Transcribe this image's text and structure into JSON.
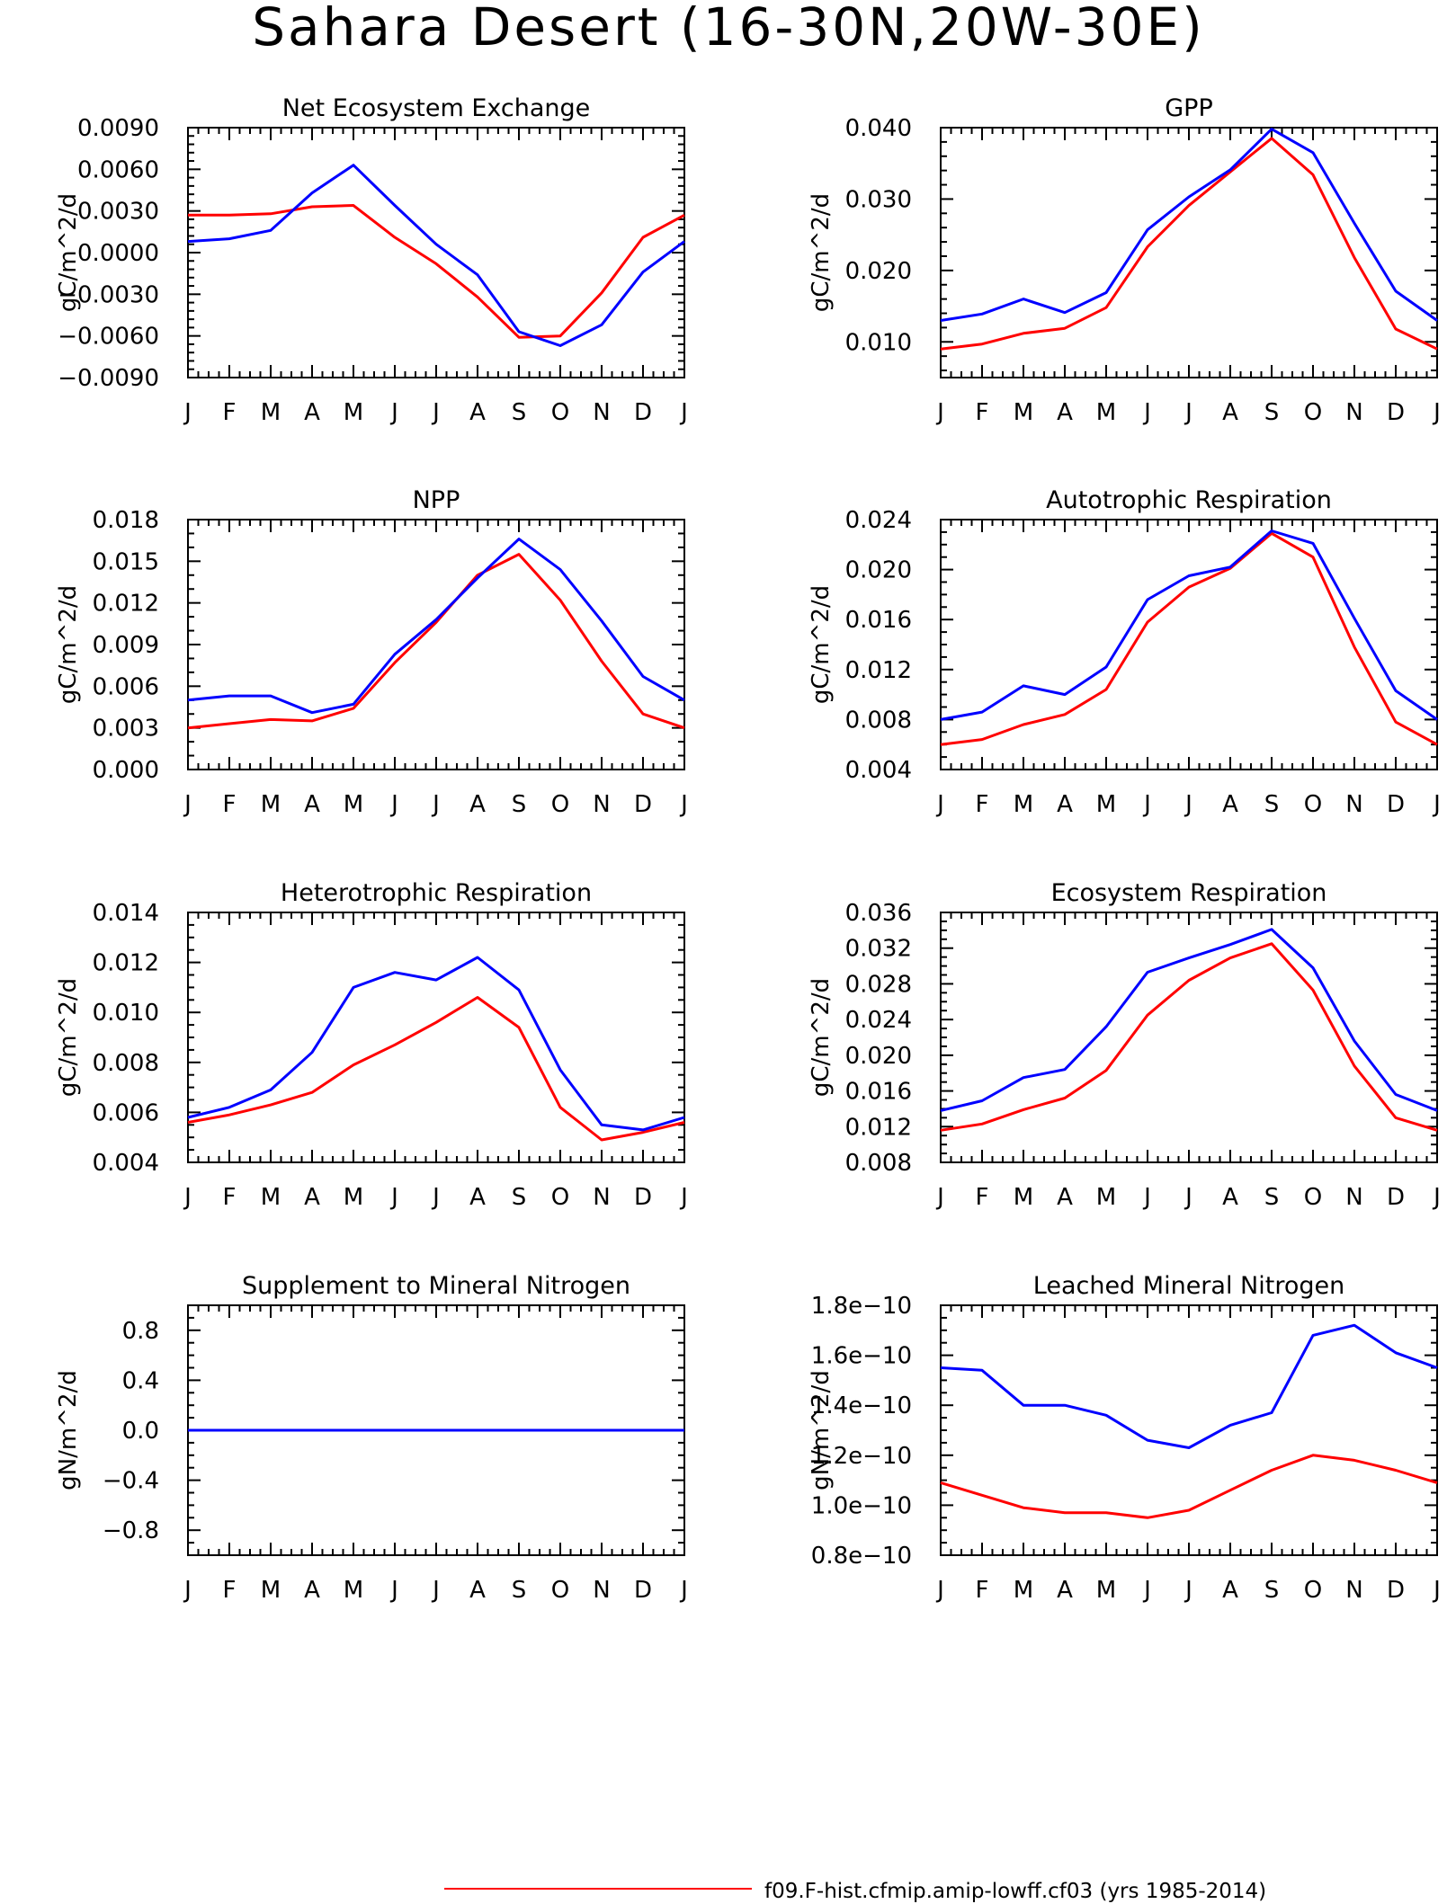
{
  "title": "Sahara Desert (16-30N,20W-30E)",
  "months": [
    "J",
    "F",
    "M",
    "A",
    "M",
    "J",
    "J",
    "A",
    "S",
    "O",
    "N",
    "D",
    "J"
  ],
  "series_colors": {
    "red": "#ff0000",
    "blue": "#0000ff"
  },
  "legend": {
    "red_label": "f09.F-hist.cfmip.amip-lowff.cf03 (yrs 1985-2014)"
  },
  "chart_data": [
    {
      "type": "line",
      "title": "Net Ecosystem Exchange",
      "ylabel": "gC/m^2/d",
      "ylim": [
        -0.009,
        0.009
      ],
      "yticks": [
        -0.009,
        -0.006,
        -0.003,
        0.0,
        0.003,
        0.006,
        0.009
      ],
      "ytick_labels": [
        "-0.0090",
        "-0.0060",
        "-0.0030",
        "0.0000",
        "0.0030",
        "0.0060",
        "0.0090"
      ],
      "yminor": 5,
      "categories": [
        "J",
        "F",
        "M",
        "A",
        "M",
        "J",
        "J",
        "A",
        "S",
        "O",
        "N",
        "D",
        "J"
      ],
      "series": [
        {
          "color": "red",
          "values": [
            0.0027,
            0.0027,
            0.0028,
            0.0033,
            0.0034,
            0.0011,
            -0.0008,
            -0.0032,
            -0.0061,
            -0.006,
            -0.0029,
            0.0011,
            0.0027
          ]
        },
        {
          "color": "blue",
          "values": [
            0.0008,
            0.001,
            0.0016,
            0.0043,
            0.0063,
            0.0034,
            0.0006,
            -0.0016,
            -0.0057,
            -0.0067,
            -0.0052,
            -0.0014,
            0.0008
          ]
        }
      ]
    },
    {
      "type": "line",
      "title": "GPP",
      "ylabel": "gC/m^2/d",
      "ylim": [
        0.005,
        0.04
      ],
      "yticks": [
        0.01,
        0.02,
        0.03,
        0.04
      ],
      "ytick_labels": [
        "0.010",
        "0.020",
        "0.030",
        "0.040"
      ],
      "yminor": 5,
      "categories": [
        "J",
        "F",
        "M",
        "A",
        "M",
        "J",
        "J",
        "A",
        "S",
        "O",
        "N",
        "D",
        "J"
      ],
      "series": [
        {
          "color": "red",
          "values": [
            0.009,
            0.0097,
            0.0112,
            0.0119,
            0.0148,
            0.0233,
            0.0291,
            0.0338,
            0.0385,
            0.0334,
            0.0218,
            0.0118,
            0.009
          ]
        },
        {
          "color": "blue",
          "values": [
            0.013,
            0.0139,
            0.016,
            0.0141,
            0.0169,
            0.0257,
            0.0303,
            0.0341,
            0.0398,
            0.0365,
            0.0266,
            0.0171,
            0.013
          ]
        }
      ]
    },
    {
      "type": "line",
      "title": "NPP",
      "ylabel": "gC/m^2/d",
      "ylim": [
        0.0,
        0.018
      ],
      "yticks": [
        0.0,
        0.003,
        0.006,
        0.009,
        0.012,
        0.015,
        0.018
      ],
      "ytick_labels": [
        "0.000",
        "0.003",
        "0.006",
        "0.009",
        "0.012",
        "0.015",
        "0.018"
      ],
      "yminor": 3,
      "categories": [
        "J",
        "F",
        "M",
        "A",
        "M",
        "J",
        "J",
        "A",
        "S",
        "O",
        "N",
        "D",
        "J"
      ],
      "series": [
        {
          "color": "red",
          "values": [
            0.003,
            0.0033,
            0.0036,
            0.0035,
            0.0044,
            0.0077,
            0.0106,
            0.014,
            0.0155,
            0.0122,
            0.0078,
            0.004,
            0.003
          ]
        },
        {
          "color": "blue",
          "values": [
            0.005,
            0.0053,
            0.0053,
            0.0041,
            0.0047,
            0.0083,
            0.0108,
            0.0138,
            0.0166,
            0.0144,
            0.0107,
            0.0067,
            0.005
          ]
        }
      ]
    },
    {
      "type": "line",
      "title": "Autotrophic Respiration",
      "ylabel": "gC/m^2/d",
      "ylim": [
        0.004,
        0.024
      ],
      "yticks": [
        0.004,
        0.008,
        0.012,
        0.016,
        0.02,
        0.024
      ],
      "ytick_labels": [
        "0.004",
        "0.008",
        "0.012",
        "0.016",
        "0.020",
        "0.024"
      ],
      "yminor": 4,
      "categories": [
        "J",
        "F",
        "M",
        "A",
        "M",
        "J",
        "J",
        "A",
        "S",
        "O",
        "N",
        "D",
        "J"
      ],
      "series": [
        {
          "color": "red",
          "values": [
            0.006,
            0.0064,
            0.0076,
            0.0084,
            0.0104,
            0.0158,
            0.0186,
            0.0201,
            0.0229,
            0.021,
            0.0138,
            0.0078,
            0.006
          ]
        },
        {
          "color": "blue",
          "values": [
            0.008,
            0.0086,
            0.0107,
            0.01,
            0.0122,
            0.0176,
            0.0195,
            0.0202,
            0.0231,
            0.0221,
            0.0161,
            0.0103,
            0.008
          ]
        }
      ]
    },
    {
      "type": "line",
      "title": "Heterotrophic Respiration",
      "ylabel": "gC/m^2/d",
      "ylim": [
        0.004,
        0.014
      ],
      "yticks": [
        0.004,
        0.006,
        0.008,
        0.01,
        0.012,
        0.014
      ],
      "ytick_labels": [
        "0.004",
        "0.006",
        "0.008",
        "0.010",
        "0.012",
        "0.014"
      ],
      "yminor": 4,
      "categories": [
        "J",
        "F",
        "M",
        "A",
        "M",
        "J",
        "J",
        "A",
        "S",
        "O",
        "N",
        "D",
        "J"
      ],
      "series": [
        {
          "color": "red",
          "values": [
            0.0056,
            0.0059,
            0.0063,
            0.0068,
            0.0079,
            0.0087,
            0.0096,
            0.0106,
            0.0094,
            0.0062,
            0.0049,
            0.0052,
            0.0056
          ]
        },
        {
          "color": "blue",
          "values": [
            0.0058,
            0.0062,
            0.0069,
            0.0084,
            0.011,
            0.0116,
            0.0113,
            0.0122,
            0.0109,
            0.0077,
            0.0055,
            0.0053,
            0.0058
          ]
        }
      ]
    },
    {
      "type": "line",
      "title": "Ecosystem Respiration",
      "ylabel": "gC/m^2/d",
      "ylim": [
        0.008,
        0.036
      ],
      "yticks": [
        0.008,
        0.012,
        0.016,
        0.02,
        0.024,
        0.028,
        0.032,
        0.036
      ],
      "ytick_labels": [
        "0.008",
        "0.012",
        "0.016",
        "0.020",
        "0.024",
        "0.028",
        "0.032",
        "0.036"
      ],
      "yminor": 4,
      "categories": [
        "J",
        "F",
        "M",
        "A",
        "M",
        "J",
        "J",
        "A",
        "S",
        "O",
        "N",
        "D",
        "J"
      ],
      "series": [
        {
          "color": "red",
          "values": [
            0.0116,
            0.0123,
            0.0139,
            0.0152,
            0.0183,
            0.0245,
            0.0284,
            0.0309,
            0.0325,
            0.0273,
            0.0188,
            0.013,
            0.0116
          ]
        },
        {
          "color": "blue",
          "values": [
            0.0138,
            0.0149,
            0.0175,
            0.0184,
            0.0232,
            0.0293,
            0.0309,
            0.0324,
            0.0341,
            0.0298,
            0.0216,
            0.0156,
            0.0138
          ]
        }
      ]
    },
    {
      "type": "line",
      "title": "Supplement to Mineral Nitrogen",
      "ylabel": "gN/m^2/d",
      "ylim": [
        -1.0,
        1.0
      ],
      "yticks": [
        -0.8,
        -0.4,
        0.0,
        0.4,
        0.8
      ],
      "ytick_labels": [
        "-0.8",
        "-0.4",
        "0.0",
        "0.4",
        "0.8"
      ],
      "yminor": 4,
      "categories": [
        "J",
        "F",
        "M",
        "A",
        "M",
        "J",
        "J",
        "A",
        "S",
        "O",
        "N",
        "D",
        "J"
      ],
      "series": [
        {
          "color": "red",
          "values": [
            0,
            0,
            0,
            0,
            0,
            0,
            0,
            0,
            0,
            0,
            0,
            0,
            0
          ]
        },
        {
          "color": "blue",
          "values": [
            0,
            0,
            0,
            0,
            0,
            0,
            0,
            0,
            0,
            0,
            0,
            0,
            0
          ]
        }
      ]
    },
    {
      "type": "line",
      "title": "Leached Mineral Nitrogen",
      "ylabel": "gN/m^2/d",
      "ylim": [
        8e-11,
        1.8e-10
      ],
      "yticks": [
        8e-11,
        1e-10,
        1.2e-10,
        1.4e-10,
        1.6e-10,
        1.8e-10
      ],
      "ytick_labels": [
        "0.8e-10",
        "1.0e-10",
        "1.2e-10",
        "1.4e-10",
        "1.6e-10",
        "1.8e-10"
      ],
      "yminor": 4,
      "categories": [
        "J",
        "F",
        "M",
        "A",
        "M",
        "J",
        "J",
        "A",
        "S",
        "O",
        "N",
        "D",
        "J"
      ],
      "series": [
        {
          "color": "red",
          "values": [
            1.09e-10,
            1.04e-10,
            9.9e-11,
            9.7e-11,
            9.7e-11,
            9.5e-11,
            9.8e-11,
            1.06e-10,
            1.14e-10,
            1.2e-10,
            1.18e-10,
            1.14e-10,
            1.09e-10
          ]
        },
        {
          "color": "blue",
          "values": [
            1.55e-10,
            1.54e-10,
            1.4e-10,
            1.4e-10,
            1.36e-10,
            1.26e-10,
            1.23e-10,
            1.32e-10,
            1.37e-10,
            1.68e-10,
            1.72e-10,
            1.61e-10,
            1.55e-10
          ]
        }
      ]
    }
  ]
}
